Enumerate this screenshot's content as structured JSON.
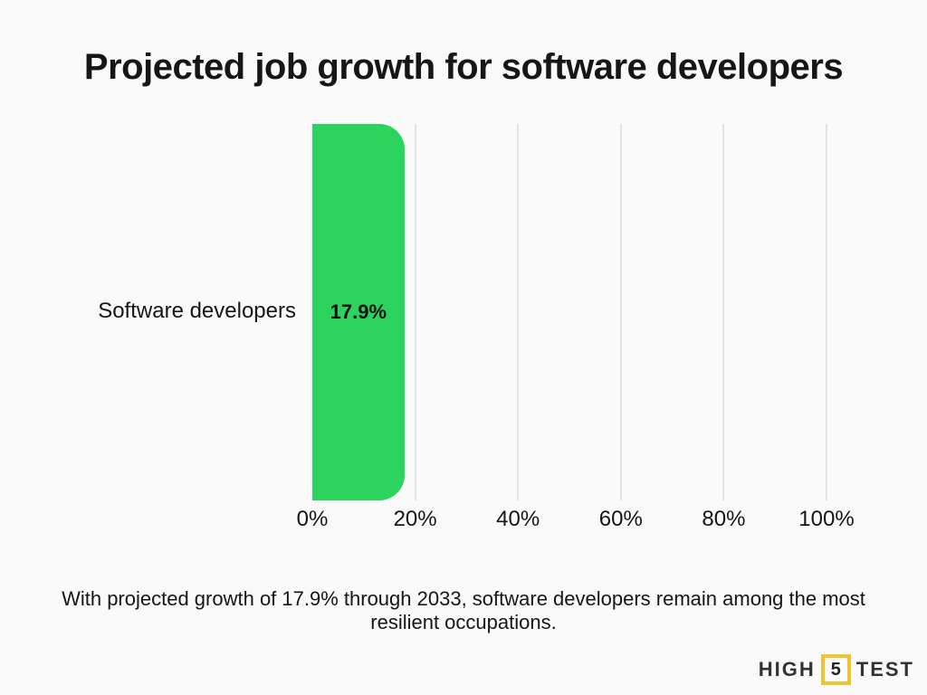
{
  "title": "Projected job growth for software developers",
  "chart_data": {
    "type": "bar",
    "orientation": "horizontal",
    "title": "Projected job growth for software developers",
    "categories": [
      "Software developers"
    ],
    "values": [
      17.9
    ],
    "value_labels": [
      "17.9%"
    ],
    "xlabel": "",
    "ylabel": "",
    "xlim": [
      0,
      100
    ],
    "x_tick_values": [
      0,
      20,
      40,
      60,
      80,
      100
    ],
    "x_tick_labels": [
      "0%",
      "20%",
      "40%",
      "60%",
      "80%",
      "100%"
    ],
    "grid": true,
    "legend": false,
    "bar_color": "#2dd35f"
  },
  "caption": "With projected growth of 17.9% through 2033, software developers remain among the most resilient occupations.",
  "logo": {
    "word1": "HIGH",
    "number": "5",
    "word2": "TEST",
    "accent_color": "#f2c230",
    "text_color": "#333333"
  },
  "colors": {
    "background": "#fafafa",
    "gridline": "#e3e3e3",
    "text": "#161616",
    "bar": "#2dd35f"
  }
}
